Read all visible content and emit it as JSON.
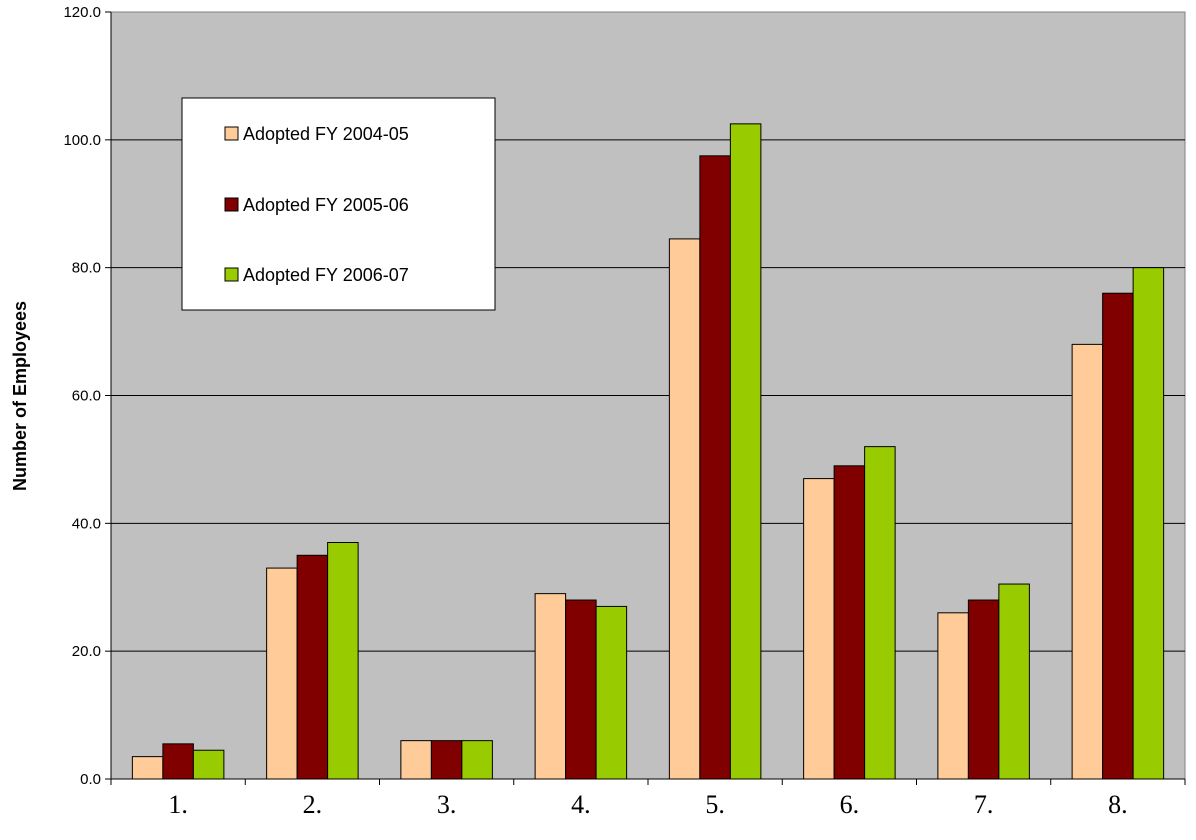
{
  "chart_data": {
    "type": "bar",
    "title": "",
    "xlabel": "",
    "ylabel": "Number of Employees",
    "ylim": [
      0,
      120
    ],
    "yticks": [
      "0.0",
      "20.0",
      "40.0",
      "60.0",
      "80.0",
      "100.0",
      "120.0"
    ],
    "categories": [
      "1.",
      "2.",
      "3.",
      "4.",
      "5.",
      "6.",
      "7.",
      "8."
    ],
    "grid": true,
    "legend_position": "top-left",
    "series": [
      {
        "name": "Adopted FY 2004-05",
        "color": "#ffcc99",
        "values": [
          3.5,
          33,
          6,
          29,
          84.5,
          47,
          26,
          68
        ]
      },
      {
        "name": "Adopted FY 2005-06",
        "color": "#800000",
        "values": [
          5.5,
          35,
          6,
          28,
          97.5,
          49,
          28,
          76
        ]
      },
      {
        "name": "Adopted FY 2006-07",
        "color": "#99cc00",
        "values": [
          4.5,
          37,
          6,
          27,
          102.5,
          52,
          30.5,
          80
        ]
      }
    ],
    "plot_background": "#c0c0c0"
  }
}
